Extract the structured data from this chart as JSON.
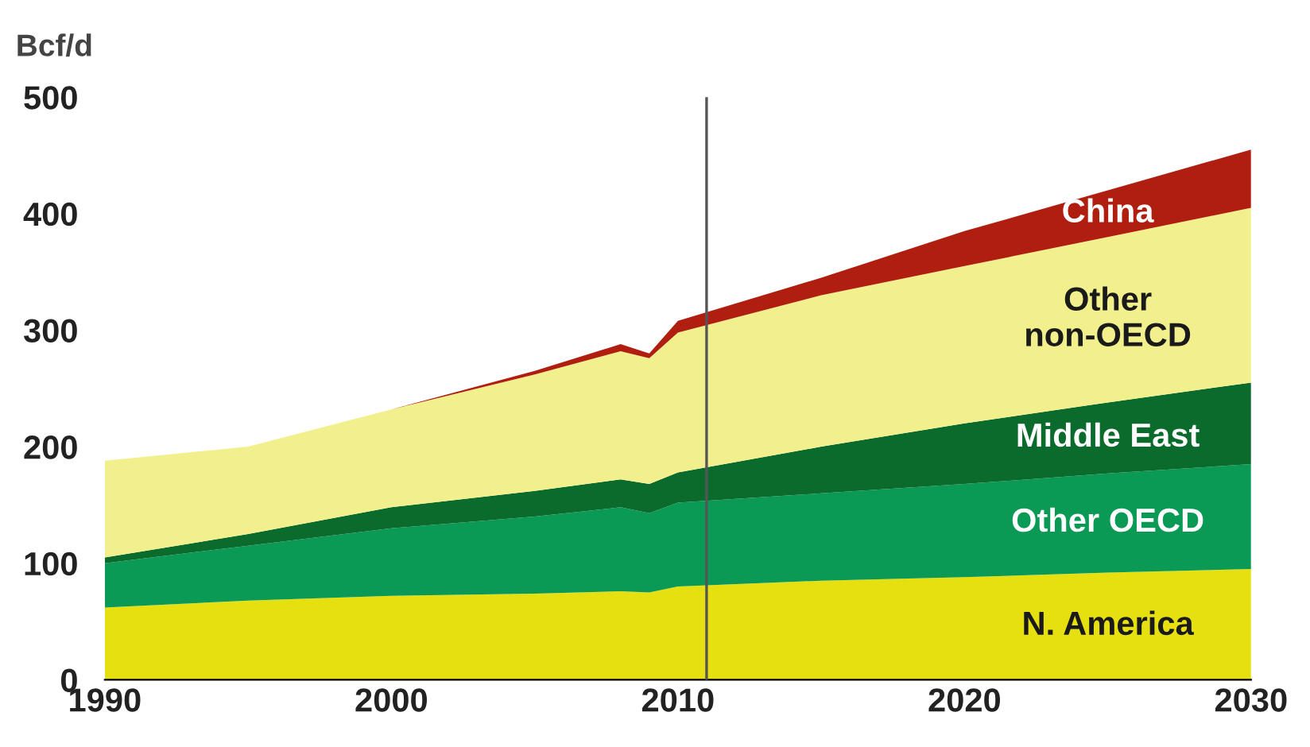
{
  "chart_data": {
    "type": "area",
    "stacked": true,
    "ylabel": "Bcf/d",
    "x": [
      1990,
      1995,
      2000,
      2005,
      2008,
      2009,
      2010,
      2015,
      2020,
      2025,
      2030
    ],
    "series": [
      {
        "name": "N. America",
        "color": "#e6e010",
        "values": [
          62,
          68,
          72,
          74,
          76,
          75,
          80,
          85,
          88,
          92,
          95
        ]
      },
      {
        "name": "Other OECD",
        "color": "#0a9a55",
        "values": [
          38,
          47,
          58,
          66,
          72,
          68,
          72,
          75,
          80,
          85,
          90
        ]
      },
      {
        "name": "Middle East",
        "color": "#0b6b2c",
        "values": [
          5,
          10,
          18,
          22,
          24,
          25,
          26,
          40,
          52,
          61,
          70
        ]
      },
      {
        "name": "Other\nnon-OECD",
        "color": "#f2f08c",
        "values": [
          83,
          75,
          84,
          100,
          110,
          108,
          120,
          130,
          135,
          142,
          150
        ]
      },
      {
        "name": "China",
        "color": "#b01e10",
        "values": [
          0,
          0,
          0,
          3,
          6,
          4,
          10,
          15,
          30,
          40,
          50
        ]
      }
    ],
    "xlim": [
      1990,
      2030
    ],
    "xticks": [
      1990,
      2000,
      2010,
      2020,
      2030
    ],
    "ylim": [
      0,
      500
    ],
    "yticks": [
      0,
      100,
      200,
      300,
      400,
      500
    ],
    "ref_lines": [
      {
        "axis": "x",
        "value": 2011,
        "color": "#555555"
      }
    ],
    "grid": false,
    "legend": false
  }
}
